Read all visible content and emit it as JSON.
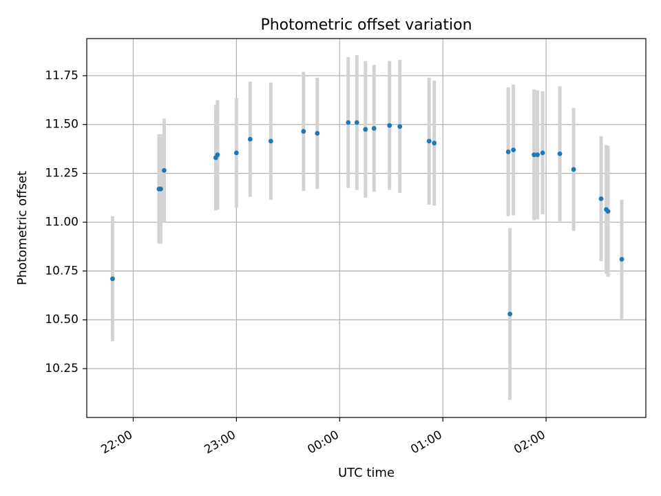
{
  "chart_data": {
    "type": "scatter",
    "title": "Photometric offset variation",
    "xlabel": "UTC time",
    "ylabel": "Photometric offset",
    "grid": true,
    "x_axis": {
      "kind": "time",
      "range": [
        "21:33",
        "02:58"
      ],
      "ticks": [
        "22:00",
        "23:00",
        "00:00",
        "01:00",
        "02:00"
      ]
    },
    "y_axis": {
      "range": [
        10.0,
        11.94
      ],
      "ticks": [
        "10.25",
        "10.50",
        "10.75",
        "11.00",
        "11.25",
        "11.50",
        "11.75"
      ]
    },
    "colors": {
      "point": "#1f77b4",
      "error_bar": "#d3d3d3",
      "grid": "#b0b0b0"
    },
    "series": [
      {
        "points": [
          {
            "x": "21:48",
            "y": 10.71,
            "err": 0.32
          },
          {
            "x": "22:15",
            "y": 11.17,
            "err": 0.28
          },
          {
            "x": "22:16",
            "y": 11.17,
            "err": 0.28
          },
          {
            "x": "22:18",
            "y": 11.265,
            "err": 0.265
          },
          {
            "x": "22:48",
            "y": 11.33,
            "err": 0.27
          },
          {
            "x": "22:49",
            "y": 11.345,
            "err": 0.28
          },
          {
            "x": "23:00",
            "y": 11.355,
            "err": 0.28
          },
          {
            "x": "23:08",
            "y": 11.425,
            "err": 0.295
          },
          {
            "x": "23:20",
            "y": 11.415,
            "err": 0.3
          },
          {
            "x": "23:39",
            "y": 11.465,
            "err": 0.305
          },
          {
            "x": "23:47",
            "y": 11.455,
            "err": 0.285
          },
          {
            "x": "00:05",
            "y": 11.51,
            "err": 0.335
          },
          {
            "x": "00:10",
            "y": 11.51,
            "err": 0.345
          },
          {
            "x": "00:15",
            "y": 11.475,
            "err": 0.35
          },
          {
            "x": "00:20",
            "y": 11.48,
            "err": 0.325
          },
          {
            "x": "00:29",
            "y": 11.495,
            "err": 0.33
          },
          {
            "x": "00:35",
            "y": 11.49,
            "err": 0.34
          },
          {
            "x": "00:52",
            "y": 11.415,
            "err": 0.325
          },
          {
            "x": "00:55",
            "y": 11.405,
            "err": 0.32
          },
          {
            "x": "01:38",
            "y": 11.36,
            "err": 0.33
          },
          {
            "x": "01:39",
            "y": 10.53,
            "err": 0.44
          },
          {
            "x": "01:41",
            "y": 11.37,
            "err": 0.335
          },
          {
            "x": "01:53",
            "y": 11.345,
            "err": 0.335
          },
          {
            "x": "01:55",
            "y": 11.345,
            "err": 0.33
          },
          {
            "x": "01:58",
            "y": 11.355,
            "err": 0.315
          },
          {
            "x": "02:08",
            "y": 11.35,
            "err": 0.345
          },
          {
            "x": "02:16",
            "y": 11.27,
            "err": 0.315
          },
          {
            "x": "02:32",
            "y": 11.12,
            "err": 0.32
          },
          {
            "x": "02:35",
            "y": 11.065,
            "err": 0.33
          },
          {
            "x": "02:36",
            "y": 11.055,
            "err": 0.335
          },
          {
            "x": "02:44",
            "y": 10.81,
            "err": 0.305
          }
        ]
      }
    ]
  }
}
